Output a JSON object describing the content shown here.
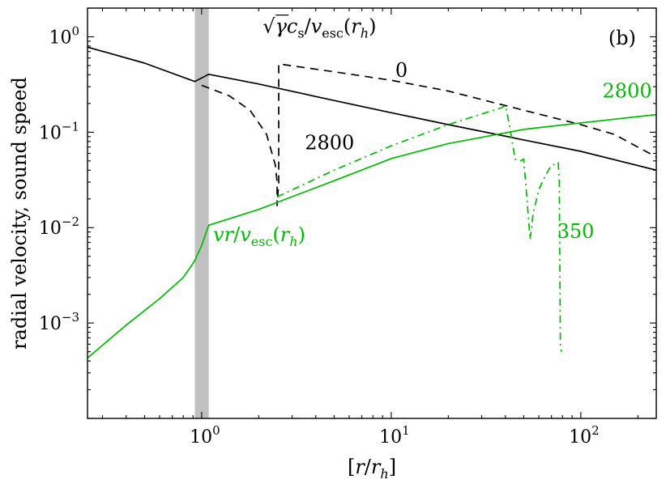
{
  "chart_data": {
    "type": "line",
    "panel_label": "(b)",
    "xlabel": "[r/r_h]",
    "ylabel": "radial velocity, sound speed",
    "x_scale": "log",
    "y_scale": "log",
    "xlim": [
      0.25,
      250
    ],
    "ylim": [
      0.0001,
      2.0
    ],
    "grid": false,
    "x_ticks": [
      {
        "value": 1,
        "base": "10",
        "exp": "0"
      },
      {
        "value": 10,
        "base": "10",
        "exp": "1"
      },
      {
        "value": 100,
        "base": "10",
        "exp": "2"
      }
    ],
    "y_ticks": [
      {
        "value": 0.001,
        "base": "10",
        "exp": "−3"
      },
      {
        "value": 0.01,
        "base": "10",
        "exp": "−2"
      },
      {
        "value": 0.1,
        "base": "10",
        "exp": "−1"
      },
      {
        "value": 1,
        "base": "10",
        "exp": "0"
      }
    ],
    "shaded_band": {
      "x_from": 0.92,
      "x_to": 1.09,
      "color": "#c0c0c0"
    },
    "annotations": {
      "sound_speed_label": {
        "parts": [
          "√",
          "γ",
          "c",
          "s",
          "/",
          "v",
          "esc",
          "(",
          "r",
          "h",
          ")"
        ],
        "x": 2.1,
        "y": 1.1,
        "color": "#000000"
      },
      "velocity_label": {
        "parts": [
          "v",
          "r",
          "/",
          "v",
          "esc",
          "(",
          "r",
          "h",
          ")"
        ],
        "x": 1.15,
        "y": 0.0072,
        "color": "#00bb00"
      },
      "label_0": {
        "text": "0",
        "x": 10.5,
        "y": 0.38,
        "color": "#000000"
      },
      "label_2800_black": {
        "text": "2800",
        "x": 3.5,
        "y": 0.066,
        "color": "#000000"
      },
      "label_2800_green": {
        "text": "2800",
        "x": 130,
        "y": 0.23,
        "color": "#00bb00"
      },
      "label_350": {
        "text": "350",
        "x": 75,
        "y": 0.0078,
        "color": "#00bb00"
      }
    },
    "series": [
      {
        "style": "solid",
        "color": "#000000",
        "x": [
          0.25,
          0.5,
          0.92,
          1.09,
          2,
          5,
          10,
          20,
          50,
          100,
          250
        ],
        "y": [
          0.78,
          0.53,
          0.34,
          0.405,
          0.32,
          0.215,
          0.16,
          0.12,
          0.083,
          0.063,
          0.04
        ]
      },
      {
        "style": "dashed",
        "color": "#000000",
        "x": [
          1.0,
          1.4,
          1.8,
          2.2,
          2.45,
          2.5,
          2.5,
          2.55,
          2.55,
          5,
          10,
          20,
          30,
          50,
          100,
          150,
          250
        ],
        "y": [
          0.31,
          0.24,
          0.17,
          0.095,
          0.045,
          0.03,
          0.017,
          0.03,
          0.52,
          0.43,
          0.35,
          0.27,
          0.22,
          0.17,
          0.12,
          0.095,
          0.055
        ]
      },
      {
        "style": "solid",
        "color": "#00bb00",
        "x": [
          0.25,
          0.4,
          0.6,
          0.8,
          0.92,
          1.0,
          1.09,
          2,
          5,
          10,
          20,
          50,
          100,
          250
        ],
        "y": [
          0.00043,
          0.00095,
          0.0018,
          0.003,
          0.0045,
          0.0065,
          0.0106,
          0.0155,
          0.031,
          0.053,
          0.076,
          0.107,
          0.125,
          0.153
        ]
      },
      {
        "style": "dashdot",
        "color": "#00bb00",
        "x": [
          2.5,
          5,
          10,
          20,
          30,
          38,
          40,
          42,
          45,
          48,
          50,
          52,
          54,
          56,
          60,
          65,
          70,
          73,
          76,
          77,
          77.5,
          78,
          79
        ],
        "y": [
          0.021,
          0.04,
          0.072,
          0.12,
          0.155,
          0.18,
          0.19,
          0.12,
          0.052,
          0.05,
          0.052,
          0.02,
          0.0075,
          0.014,
          0.025,
          0.035,
          0.045,
          0.046,
          0.048,
          0.03,
          0.004,
          0.0006,
          0.0005
        ]
      }
    ]
  }
}
